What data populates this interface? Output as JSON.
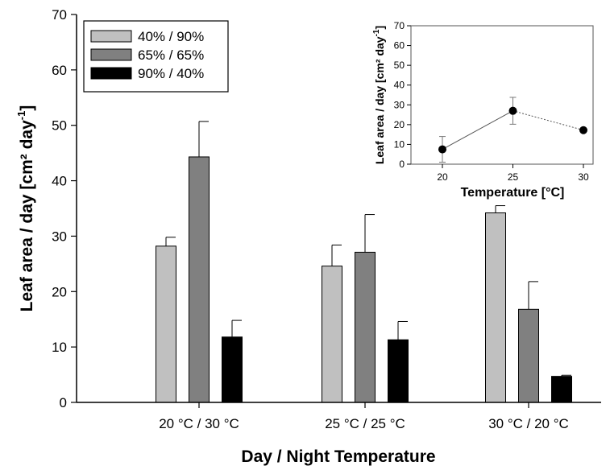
{
  "chart_data": [
    {
      "type": "bar",
      "title": "",
      "xlabel": "Day / Night Temperature",
      "ylabel": "Leaf area / day [cm² day⁻¹]",
      "ylabel_main": "Leaf area / day [cm² day",
      "ylabel_sup": "-1",
      "ylabel_end": "]",
      "ylim": [
        0,
        70
      ],
      "yticks": [
        "0",
        "10",
        "20",
        "30",
        "40",
        "50",
        "60",
        "70"
      ],
      "categories": [
        "20 °C / 30 °C",
        "25 °C / 25 °C",
        "30 °C / 20 °C"
      ],
      "series": [
        {
          "name": "40% / 90%",
          "color": "#c0c0c0",
          "values": [
            28.2,
            24.6,
            34.2
          ],
          "errors": [
            1.6,
            3.8,
            1.3
          ]
        },
        {
          "name": "65% / 65%",
          "color": "#808080",
          "values": [
            44.3,
            27.1,
            16.8
          ],
          "errors": [
            6.4,
            6.8,
            5.0
          ]
        },
        {
          "name": "90% / 40%",
          "color": "#000000",
          "values": [
            11.8,
            11.3,
            4.7
          ],
          "errors": [
            3.0,
            3.3,
            0.2
          ]
        }
      ],
      "legend": "top-left",
      "grid": false
    },
    {
      "type": "scatter",
      "title": "",
      "xlabel": "Temperature [°C]",
      "ylabel": "Leaf area / day [cm² day⁻¹]",
      "ylabel_main": "Leaf area / day [cm² day",
      "ylabel_sup": "-1",
      "ylabel_end": "]",
      "ylim": [
        0,
        70
      ],
      "yticks": [
        "0",
        "10",
        "20",
        "30",
        "40",
        "50",
        "60",
        "70"
      ],
      "xticks": [
        "20",
        "25",
        "30"
      ],
      "x": [
        20,
        25,
        30
      ],
      "y": [
        7.5,
        27.0,
        17.2
      ],
      "errors": [
        6.5,
        6.8,
        0.8
      ],
      "grid": false
    }
  ]
}
